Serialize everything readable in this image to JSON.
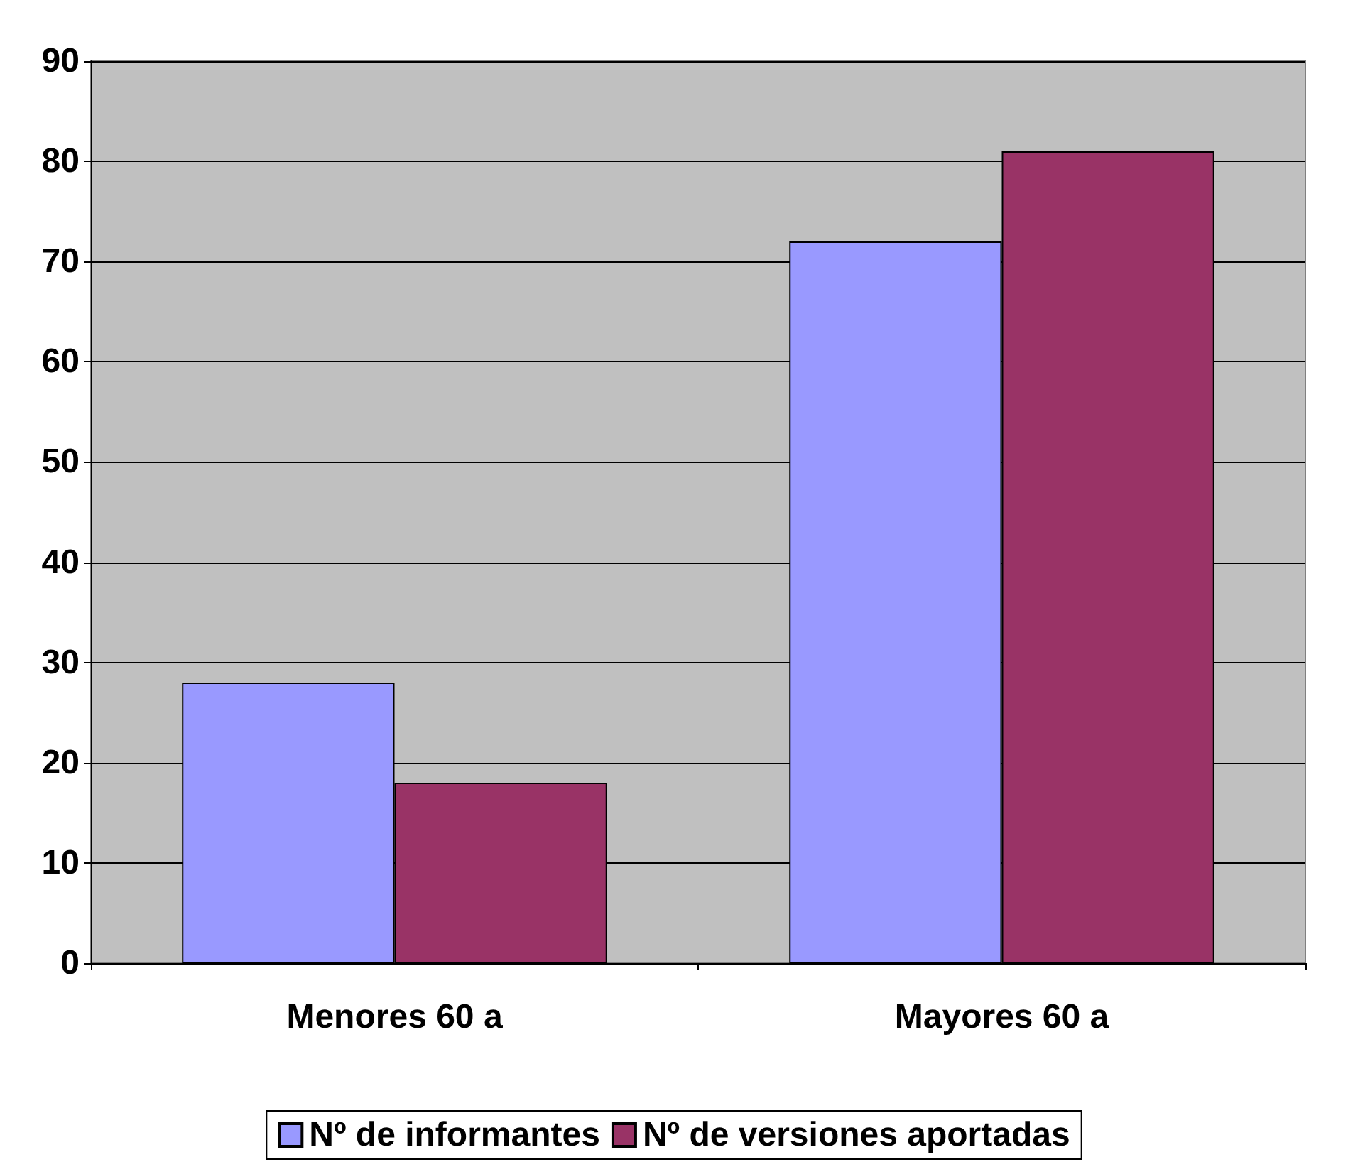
{
  "chart_data": {
    "type": "bar",
    "categories": [
      "Menores 60 a",
      "Mayores 60 a"
    ],
    "series": [
      {
        "name": "Nº de informantes",
        "color": "#9999ff",
        "values": [
          28,
          72
        ]
      },
      {
        "name": "Nº de versiones aportadas",
        "color": "#993366",
        "values": [
          18,
          81
        ]
      }
    ],
    "ylim": [
      0,
      90
    ],
    "yticks": [
      0,
      10,
      20,
      30,
      40,
      50,
      60,
      70,
      80,
      90
    ],
    "grid": "y",
    "legend": "bottom"
  }
}
